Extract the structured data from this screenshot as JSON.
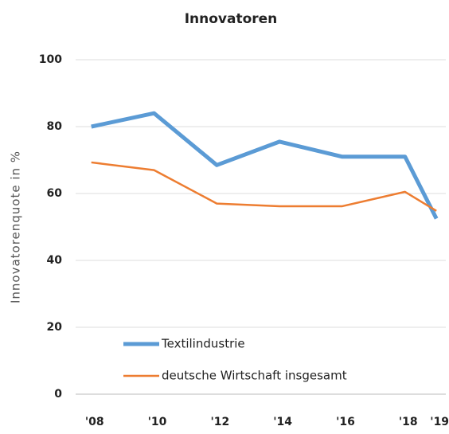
{
  "chart_data": {
    "type": "line",
    "title": "Innovatoren",
    "ylabel": "Innovatorenquote in %",
    "x": [
      2008,
      2010,
      2012,
      2014,
      2016,
      2018,
      2019
    ],
    "xlim": [
      2007.5,
      2019.3
    ],
    "xticks": [
      {
        "value": 2008,
        "label": "'08"
      },
      {
        "value": 2010,
        "label": "'10"
      },
      {
        "value": 2012,
        "label": "'12"
      },
      {
        "value": 2014,
        "label": "'14"
      },
      {
        "value": 2016,
        "label": "'16"
      },
      {
        "value": 2018,
        "label": "'18"
      },
      {
        "value": 2019,
        "label": "'19"
      }
    ],
    "ylim": [
      0,
      100
    ],
    "yticks": [
      0,
      20,
      40,
      60,
      80,
      100
    ],
    "grid": true,
    "legend": "lower left",
    "series": [
      {
        "name": "Textilindustrie",
        "color": "#5b9bd5",
        "width": 5,
        "values": [
          80,
          84,
          68.5,
          75.5,
          71,
          71,
          52.5
        ]
      },
      {
        "name": "deutsche Wirtschaft insgesamt",
        "color": "#ed7d31",
        "width": 2.5,
        "values": [
          69.3,
          67,
          57,
          56.2,
          56.2,
          60.5,
          54.8
        ]
      }
    ]
  }
}
